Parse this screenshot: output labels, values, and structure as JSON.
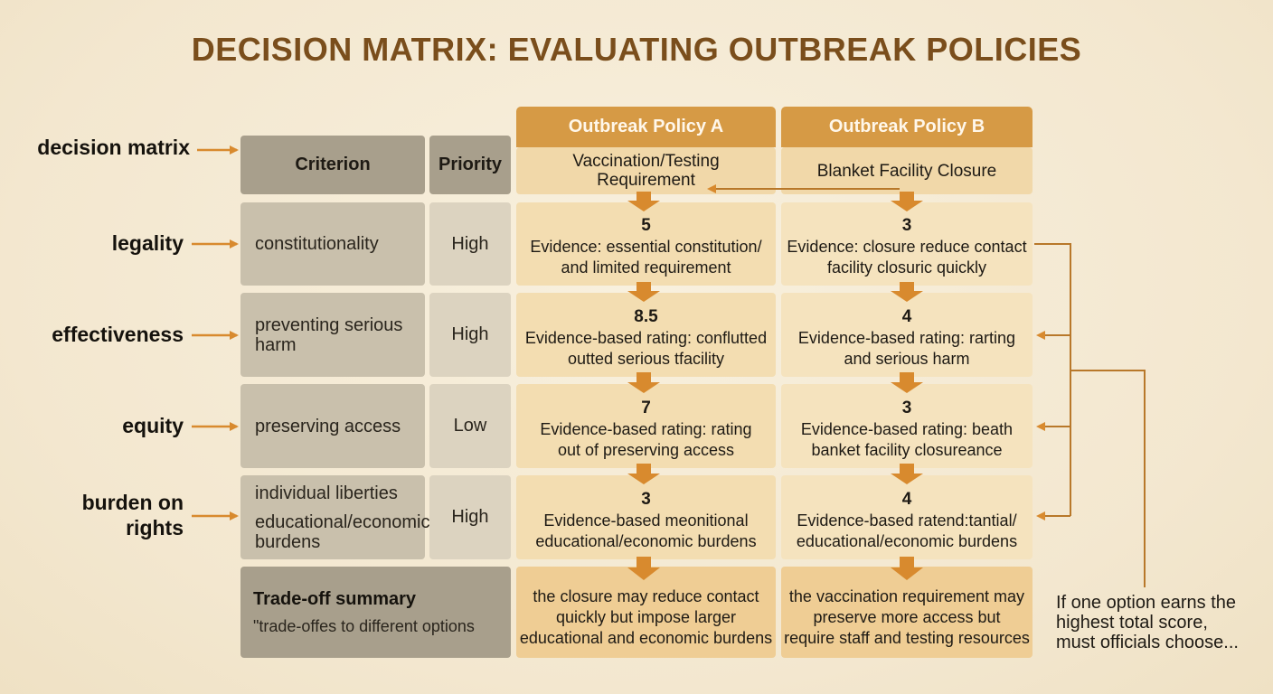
{
  "title": "DECISION MATRIX: EVALUATING OUTBREAK POLICIES",
  "left_labels": {
    "decision_matrix": "decision matrix",
    "legality": "legality",
    "effectiveness": "effectiveness",
    "equity": "equity",
    "burden_line1": "burden on",
    "burden_line2": "rights"
  },
  "header": {
    "criterion": "Criterion",
    "priority": "Priority",
    "policy_a_title": "Outbreak Policy A",
    "policy_a_sub_line1": "Vaccination/Testing",
    "policy_a_sub_line2": "Requirement",
    "policy_b_title": "Outbreak Policy B",
    "policy_b_sub": "Blanket Facility Closure"
  },
  "rows": [
    {
      "criterion_line1": "constitutionality",
      "criterion_line2": "",
      "priority": "High",
      "a_score": "5",
      "a_line1": "Evidence: essential constitution/",
      "a_line2": "and limited requirement",
      "b_score": "3",
      "b_line1": "Evidence: closure reduce contact",
      "b_line2": "facility closuric quickly"
    },
    {
      "criterion_line1": "preventing serious",
      "criterion_line2": "harm",
      "priority": "High",
      "a_score": "8.5",
      "a_line1": "Evidence-based rating: conflutted",
      "a_line2": "outted serious tfacility",
      "b_score": "4",
      "b_line1": "Evidence-based rating: rarting",
      "b_line2": "and serious harm"
    },
    {
      "criterion_line1": "preserving access",
      "criterion_line2": "",
      "priority": "Low",
      "a_score": "7",
      "a_line1": "Evidence-based rating: rating",
      "a_line2": "out of preserving access",
      "b_score": "3",
      "b_line1": "Evidence-based rating: beath",
      "b_line2": "banket facility closureance"
    },
    {
      "criterion_line1": "individual liberties",
      "criterion_line2": "educational/economic",
      "criterion_line3": "burdens",
      "priority": "High",
      "a_score": "3",
      "a_line1": "Evidence-based meonitional",
      "a_line2": "educational/economic burdens",
      "b_score": "4",
      "b_line1": "Evidence-based ratend:tantial/",
      "b_line2": "educational/economic burdens"
    }
  ],
  "summary": {
    "title": "Trade-off summary",
    "subtitle": "\"trade-offes to different options",
    "a_line1": "the closure may reduce contact",
    "a_line2": "quickly but impose larger",
    "a_line3": "educational and economic burdens",
    "b_line1": "the vaccination requirement may",
    "b_line2": "preserve more access but",
    "b_line3": "require staff and testing resources"
  },
  "note": {
    "line1": "If one option earns the",
    "line2": "highest total score,",
    "line3": "must officials choose..."
  },
  "colors": {
    "arrow": "#d88a2e",
    "connector": "#b8782a",
    "policy_header": "#d69a45",
    "title": "#7a4e1c"
  }
}
